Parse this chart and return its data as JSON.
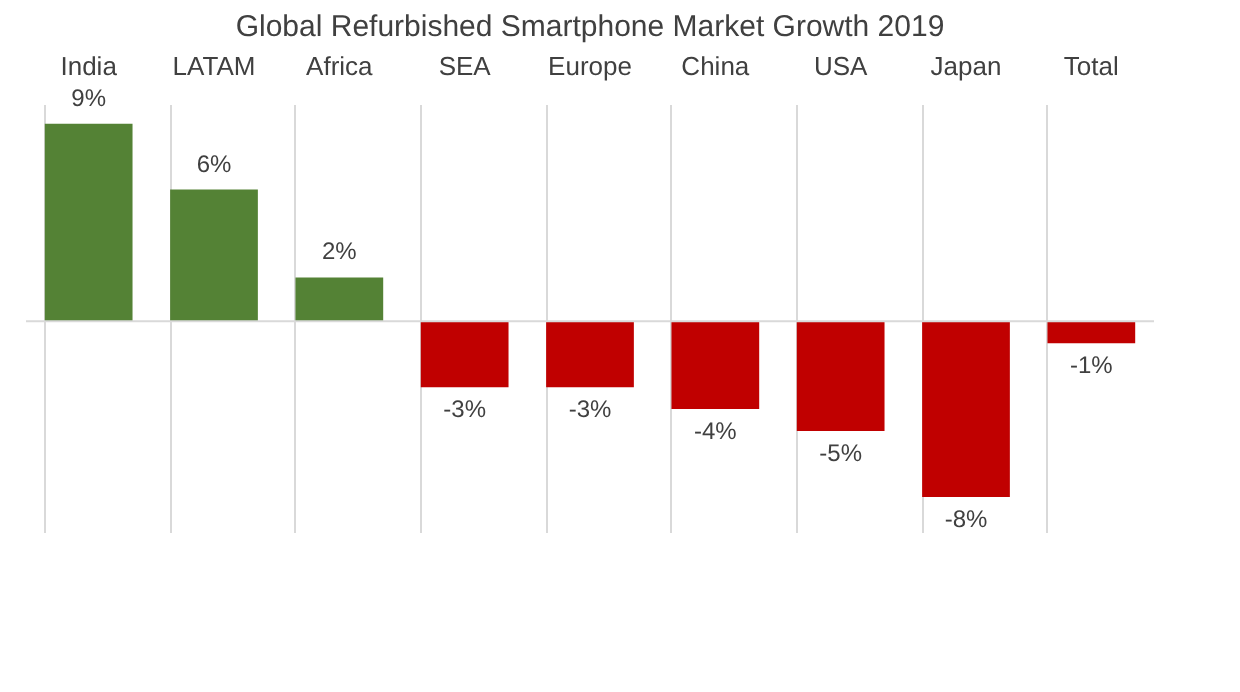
{
  "chart_data": {
    "type": "bar",
    "title": "Global Refurbished Smartphone Market Growth 2019",
    "categories": [
      "India",
      "LATAM",
      "Africa",
      "SEA",
      "Europe",
      "China",
      "USA",
      "Japan",
      "Total"
    ],
    "values": [
      9,
      6,
      2,
      -3,
      -3,
      -4,
      -5,
      -8,
      -1
    ],
    "value_labels": [
      "9%",
      "6%",
      "2%",
      "-3%",
      "-3%",
      "-4%",
      "-5%",
      "-8%",
      "-1%"
    ],
    "colors": [
      "#548235",
      "#548235",
      "#548235",
      "#c00000",
      "#c00000",
      "#c00000",
      "#c00000",
      "#c00000",
      "#c00000"
    ],
    "ref_lines": [
      {
        "axis": "y",
        "value": 0,
        "label": null,
        "color": "#d9d9d9"
      }
    ],
    "grid": "x"
  }
}
